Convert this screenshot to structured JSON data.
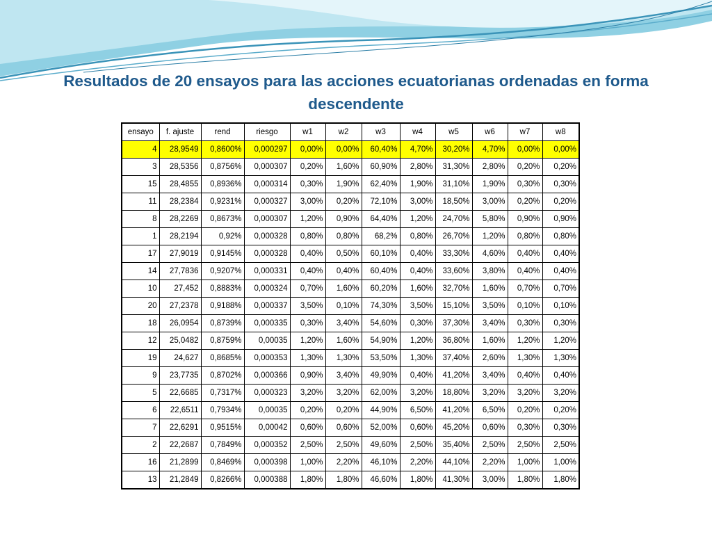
{
  "slide": {
    "title": "Resultados de 20 ensayos para las acciones ecuatorianas ordenadas en forma descendente"
  },
  "table": {
    "columns": [
      "ensayo",
      "f. ajuste",
      "rend",
      "riesgo",
      "w1",
      "w2",
      "w3",
      "w4",
      "w5",
      "w6",
      "w7",
      "w8"
    ],
    "highlight_color": "#ffff00",
    "rows": [
      [
        "4",
        "28,9549",
        "0,8600%",
        "0,000297",
        "0,00%",
        "0,00%",
        "60,40%",
        "4,70%",
        "30,20%",
        "4,70%",
        "0,00%",
        "0,00%"
      ],
      [
        "3",
        "28,5356",
        "0,8756%",
        "0,000307",
        "0,20%",
        "1,60%",
        "60,90%",
        "2,80%",
        "31,30%",
        "2,80%",
        "0,20%",
        "0,20%"
      ],
      [
        "15",
        "28,4855",
        "0,8936%",
        "0,000314",
        "0,30%",
        "1,90%",
        "62,40%",
        "1,90%",
        "31,10%",
        "1,90%",
        "0,30%",
        "0,30%"
      ],
      [
        "11",
        "28,2384",
        "0,9231%",
        "0,000327",
        "3,00%",
        "0,20%",
        "72,10%",
        "3,00%",
        "18,50%",
        "3,00%",
        "0,20%",
        "0,20%"
      ],
      [
        "8",
        "28,2269",
        "0,8673%",
        "0,000307",
        "1,20%",
        "0,90%",
        "64,40%",
        "1,20%",
        "24,70%",
        "5,80%",
        "0,90%",
        "0,90%"
      ],
      [
        "1",
        "28,2194",
        "0,92%",
        "0,000328",
        "0,80%",
        "0,80%",
        "68,2%",
        "0,80%",
        "26,70%",
        "1,20%",
        "0,80%",
        "0,80%"
      ],
      [
        "17",
        "27,9019",
        "0,9145%",
        "0,000328",
        "0,40%",
        "0,50%",
        "60,10%",
        "0,40%",
        "33,30%",
        "4,60%",
        "0,40%",
        "0,40%"
      ],
      [
        "14",
        "27,7836",
        "0,9207%",
        "0,000331",
        "0,40%",
        "0,40%",
        "60,40%",
        "0,40%",
        "33,60%",
        "3,80%",
        "0,40%",
        "0,40%"
      ],
      [
        "10",
        "27,452",
        "0,8883%",
        "0,000324",
        "0,70%",
        "1,60%",
        "60,20%",
        "1,60%",
        "32,70%",
        "1,60%",
        "0,70%",
        "0,70%"
      ],
      [
        "20",
        "27,2378",
        "0,9188%",
        "0,000337",
        "3,50%",
        "0,10%",
        "74,30%",
        "3,50%",
        "15,10%",
        "3,50%",
        "0,10%",
        "0,10%"
      ],
      [
        "18",
        "26,0954",
        "0,8739%",
        "0,000335",
        "0,30%",
        "3,40%",
        "54,60%",
        "0,30%",
        "37,30%",
        "3,40%",
        "0,30%",
        "0,30%"
      ],
      [
        "12",
        "25,0482",
        "0,8759%",
        "0,00035",
        "1,20%",
        "1,60%",
        "54,90%",
        "1,20%",
        "36,80%",
        "1,60%",
        "1,20%",
        "1,20%"
      ],
      [
        "19",
        "24,627",
        "0,8685%",
        "0,000353",
        "1,30%",
        "1,30%",
        "53,50%",
        "1,30%",
        "37,40%",
        "2,60%",
        "1,30%",
        "1,30%"
      ],
      [
        "9",
        "23,7735",
        "0,8702%",
        "0,000366",
        "0,90%",
        "3,40%",
        "49,90%",
        "0,40%",
        "41,20%",
        "3,40%",
        "0,40%",
        "0,40%"
      ],
      [
        "5",
        "22,6685",
        "0,7317%",
        "0,000323",
        "3,20%",
        "3,20%",
        "62,00%",
        "3,20%",
        "18,80%",
        "3,20%",
        "3,20%",
        "3,20%"
      ],
      [
        "6",
        "22,6511",
        "0,7934%",
        "0,00035",
        "0,20%",
        "0,20%",
        "44,90%",
        "6,50%",
        "41,20%",
        "6,50%",
        "0,20%",
        "0,20%"
      ],
      [
        "7",
        "22,6291",
        "0,9515%",
        "0,00042",
        "0,60%",
        "0,60%",
        "52,00%",
        "0,60%",
        "45,20%",
        "0,60%",
        "0,30%",
        "0,30%"
      ],
      [
        "2",
        "22,2687",
        "0,7849%",
        "0,000352",
        "2,50%",
        "2,50%",
        "49,60%",
        "2,50%",
        "35,40%",
        "2,50%",
        "2,50%",
        "2,50%"
      ],
      [
        "16",
        "21,2899",
        "0,8469%",
        "0,000398",
        "1,00%",
        "2,20%",
        "46,10%",
        "2,20%",
        "44,10%",
        "2,20%",
        "1,00%",
        "1,00%"
      ],
      [
        "13",
        "21,2849",
        "0,8266%",
        "0,000388",
        "1,80%",
        "1,80%",
        "46,60%",
        "1,80%",
        "41,30%",
        "3,00%",
        "1,80%",
        "1,80%"
      ]
    ]
  }
}
